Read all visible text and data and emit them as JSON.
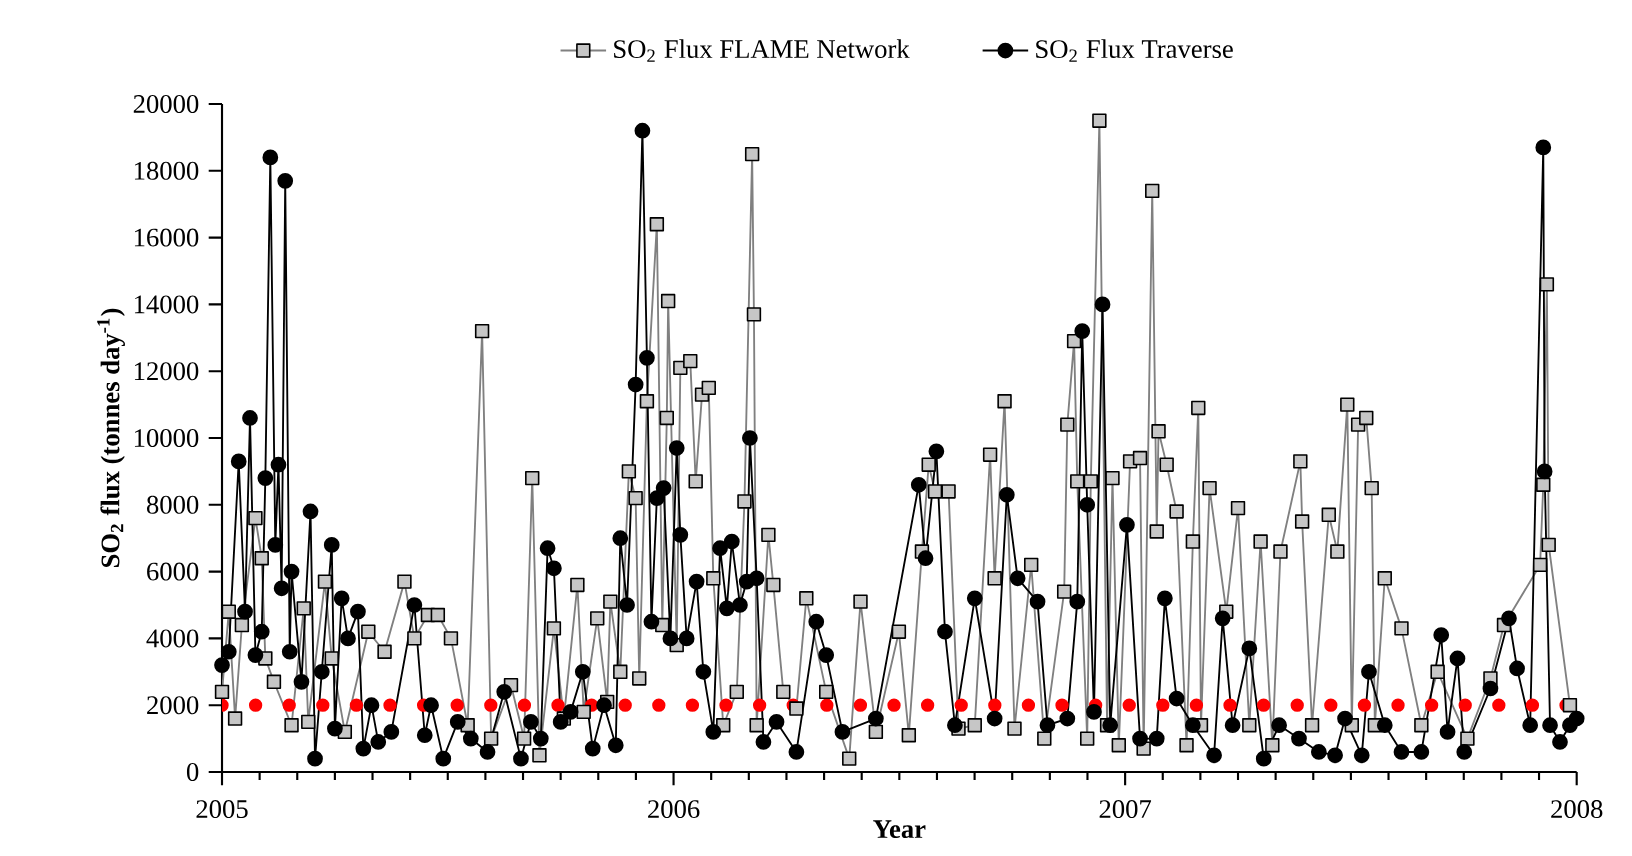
{
  "chart_data": {
    "type": "line",
    "xlabel": "Year",
    "ylabel": "SO$_{2}$ flux (tonnes day$^{-1}$)",
    "xlim": [
      2005,
      2008
    ],
    "xticks": [
      2005,
      2006,
      2007,
      2008
    ],
    "ylim": [
      0,
      20000
    ],
    "yticks": [
      0,
      2000,
      4000,
      6000,
      8000,
      10000,
      12000,
      14000,
      16000,
      18000,
      20000
    ],
    "legend": "top",
    "grid": false,
    "ref_lines": [
      {
        "axis": "y",
        "value": 2000,
        "color": "#ff0000",
        "line_style": "dotted"
      }
    ],
    "series": [
      {
        "name": "SO$_{2}$ Flux FLAME Network",
        "color": "#808080",
        "marker": "square",
        "x": [
          2005.0,
          2005.015,
          2005.029,
          2005.044,
          2005.074,
          2005.088,
          2005.096,
          2005.115,
          2005.154,
          2005.181,
          2005.191,
          2005.228,
          2005.243,
          2005.272,
          2005.324,
          2005.36,
          2005.404,
          2005.426,
          2005.456,
          2005.478,
          2005.507,
          2005.544,
          2005.576,
          2005.596,
          2005.64,
          2005.669,
          2005.687,
          2005.703,
          2005.735,
          2005.757,
          2005.787,
          2005.801,
          2005.831,
          2005.853,
          2005.86,
          2005.882,
          2005.901,
          2005.916,
          2005.924,
          2005.941,
          2005.963,
          2005.975,
          2005.985,
          2005.988,
          2006.007,
          2006.015,
          2006.037,
          2006.049,
          2006.063,
          2006.078,
          2006.088,
          2006.11,
          2006.14,
          2006.157,
          2006.174,
          2006.178,
          2006.184,
          2006.21,
          2006.221,
          2006.243,
          2006.272,
          2006.294,
          2006.338,
          2006.389,
          2006.414,
          2006.448,
          2006.499,
          2006.521,
          2006.55,
          2006.565,
          2006.579,
          2006.609,
          2006.631,
          2006.667,
          2006.701,
          2006.711,
          2006.733,
          2006.755,
          2006.792,
          2006.821,
          2006.865,
          2006.872,
          2006.887,
          2006.894,
          2006.916,
          2006.924,
          2006.943,
          2006.96,
          2006.972,
          2006.986,
          2007.011,
          2007.033,
          2007.041,
          2007.06,
          2007.07,
          2007.074,
          2007.092,
          2007.114,
          2007.136,
          2007.15,
          2007.162,
          2007.168,
          2007.187,
          2007.224,
          2007.25,
          2007.275,
          2007.3,
          2007.326,
          2007.344,
          2007.388,
          2007.392,
          2007.414,
          2007.451,
          2007.47,
          2007.492,
          2007.502,
          2007.516,
          2007.534,
          2007.546,
          2007.553,
          2007.575,
          2007.612,
          2007.656,
          2007.692,
          2007.758,
          2007.809,
          2007.839,
          2007.919,
          2007.926,
          2007.934,
          2007.938,
          2007.985
        ],
        "values": [
          2400,
          4800,
          1600,
          4400,
          7600,
          6400,
          3400,
          2700,
          1400,
          4900,
          1500,
          5700,
          3400,
          1200,
          4200,
          3600,
          5700,
          4000,
          4700,
          4700,
          4000,
          1400,
          13200,
          1000,
          2600,
          1000,
          8800,
          500,
          4300,
          1600,
          5600,
          1800,
          4600,
          2100,
          5100,
          3000,
          9000,
          8200,
          2800,
          11100,
          16400,
          4400,
          10600,
          14100,
          3800,
          12100,
          12300,
          8700,
          11300,
          11500,
          5800,
          1400,
          2400,
          8100,
          18500,
          13700,
          1400,
          7100,
          5600,
          2400,
          1900,
          5200,
          2400,
          400,
          5100,
          1200,
          4200,
          1100,
          6600,
          9200,
          8400,
          8400,
          1300,
          1400,
          9500,
          5800,
          11100,
          1300,
          6200,
          1000,
          5400,
          10400,
          12900,
          8700,
          1000,
          8700,
          19500,
          1400,
          8800,
          800,
          9300,
          9400,
          700,
          17400,
          7200,
          10200,
          9200,
          7800,
          800,
          6900,
          10900,
          1400,
          8500,
          4800,
          7900,
          1400,
          6900,
          800,
          6600,
          9300,
          7500,
          1400,
          7700,
          6600,
          11000,
          1400,
          10400,
          10600,
          8500,
          1400,
          5800,
          4300,
          1400,
          3000,
          1000,
          2800,
          4400,
          6200,
          8600,
          14600,
          6800,
          2000
        ]
      },
      {
        "name": "SO$_{2}$ Flux Traverse",
        "color": "#000000",
        "marker": "circle",
        "x": [
          2005.0,
          2005.015,
          2005.037,
          2005.051,
          2005.062,
          2005.074,
          2005.088,
          2005.096,
          2005.107,
          2005.118,
          2005.125,
          2005.132,
          2005.14,
          2005.15,
          2005.154,
          2005.176,
          2005.196,
          2005.206,
          2005.221,
          2005.243,
          2005.25,
          2005.265,
          2005.279,
          2005.301,
          2005.313,
          2005.331,
          2005.346,
          2005.375,
          2005.426,
          2005.449,
          2005.463,
          2005.49,
          2005.522,
          2005.551,
          2005.588,
          2005.625,
          2005.662,
          2005.684,
          2005.706,
          2005.721,
          2005.735,
          2005.75,
          2005.772,
          2005.799,
          2005.821,
          2005.846,
          2005.872,
          2005.882,
          2005.897,
          2005.916,
          2005.931,
          2005.941,
          2005.951,
          2005.963,
          2005.978,
          2005.993,
          2006.007,
          2006.015,
          2006.029,
          2006.051,
          2006.066,
          2006.088,
          2006.103,
          2006.118,
          2006.129,
          2006.147,
          2006.162,
          2006.169,
          2006.184,
          2006.199,
          2006.228,
          2006.272,
          2006.316,
          2006.338,
          2006.374,
          2006.448,
          2006.543,
          2006.558,
          2006.582,
          2006.601,
          2006.623,
          2006.667,
          2006.711,
          2006.738,
          2006.762,
          2006.806,
          2006.828,
          2006.872,
          2006.894,
          2006.905,
          2006.916,
          2006.931,
          2006.95,
          2006.967,
          2007.004,
          2007.033,
          2007.07,
          2007.088,
          2007.114,
          2007.15,
          2007.197,
          2007.216,
          2007.238,
          2007.275,
          2007.307,
          2007.341,
          2007.385,
          2007.429,
          2007.465,
          2007.487,
          2007.524,
          2007.54,
          2007.575,
          2007.612,
          2007.656,
          2007.7,
          2007.714,
          2007.736,
          2007.751,
          2007.809,
          2007.85,
          2007.868,
          2007.897,
          2007.926,
          2007.929,
          2007.941,
          2007.963,
          2007.985,
          2008.0
        ],
        "values": [
          3200,
          3600,
          9300,
          4800,
          10600,
          3500,
          4200,
          8800,
          18400,
          6800,
          9200,
          5500,
          17700,
          3600,
          6000,
          2700,
          7800,
          400,
          3000,
          6800,
          1300,
          5200,
          4000,
          4800,
          700,
          2000,
          900,
          1200,
          5000,
          1100,
          2000,
          400,
          1500,
          1000,
          600,
          2400,
          400,
          1500,
          1000,
          6700,
          6100,
          1500,
          1800,
          3000,
          700,
          2000,
          800,
          7000,
          5000,
          11600,
          19200,
          12400,
          4500,
          8200,
          8500,
          4000,
          9700,
          7100,
          4000,
          5700,
          3000,
          1200,
          6700,
          4900,
          6900,
          5000,
          5700,
          10000,
          5800,
          900,
          1500,
          600,
          4500,
          3500,
          1200,
          1600,
          8600,
          6400,
          9600,
          4200,
          1400,
          5200,
          1600,
          8300,
          5800,
          5100,
          1400,
          1600,
          5100,
          13200,
          8000,
          1800,
          14000,
          1400,
          7400,
          1000,
          1000,
          5200,
          2200,
          1400,
          500,
          4600,
          1400,
          3700,
          400,
          1400,
          1000,
          600,
          500,
          1600,
          500,
          3000,
          1400,
          600,
          600,
          4100,
          1200,
          3400,
          600,
          2500,
          4600,
          3100,
          1400,
          18700,
          9000,
          1400,
          900,
          1400,
          1600
        ]
      }
    ]
  }
}
